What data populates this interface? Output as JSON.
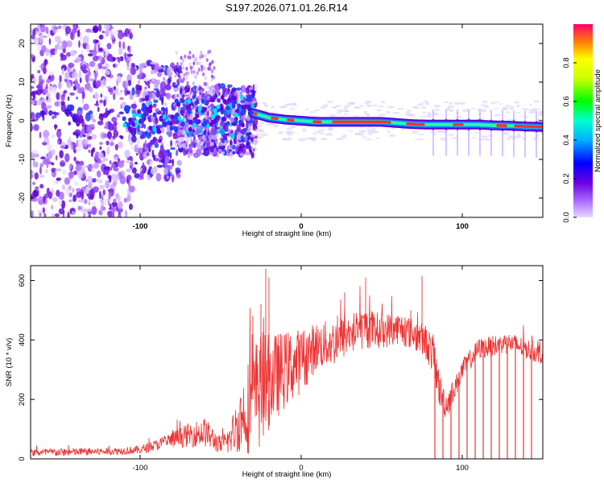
{
  "title": "S197.2026.071.01.26.R14",
  "colors": {
    "snr_line": "#ee3333",
    "axis": "#000000",
    "trace_core": "#ff3322"
  },
  "chart_data": [
    {
      "type": "heatmap",
      "name": "spectrogram",
      "xlabel": "Height of straight line (km)",
      "ylabel": "Frequency (Hz)",
      "xlim": [
        -168,
        150
      ],
      "ylim": [
        -25,
        25
      ],
      "x_ticks": [
        "-100",
        "0",
        "100"
      ],
      "x_tick_values": [
        -100,
        0,
        100
      ],
      "y_ticks": [
        "-20",
        "-10",
        "0",
        "10",
        "20"
      ],
      "y_tick_values": [
        -20,
        -10,
        0,
        10,
        20
      ],
      "colorbar": {
        "label": "Normalized spectral amplitude",
        "range": [
          0,
          1
        ],
        "ticks": [
          "0.0",
          "0.2",
          "0.4",
          "0.6",
          "0.8"
        ],
        "tick_values": [
          0.0,
          0.2,
          0.4,
          0.6,
          0.8
        ]
      },
      "peak_trace": {
        "x": [
          -30,
          -20,
          -10,
          0,
          10,
          20,
          30,
          40,
          50,
          60,
          70,
          80,
          90,
          100,
          110,
          120,
          130,
          140,
          150
        ],
        "freq": [
          2.0,
          0.8,
          0.3,
          0.0,
          -0.3,
          -0.3,
          -0.3,
          -0.3,
          -0.3,
          -0.6,
          -0.9,
          -1.0,
          -1.0,
          -1.0,
          -1.0,
          -1.2,
          -1.3,
          -1.5,
          -1.6
        ]
      },
      "striation_x": [
        82,
        90,
        97,
        104,
        111,
        118,
        125,
        132,
        139,
        146
      ]
    },
    {
      "type": "line",
      "name": "snr",
      "xlabel": "Height of straight line (km)",
      "ylabel": "SNR (10 * v/v)",
      "xlim": [
        -168,
        150
      ],
      "ylim": [
        0,
        650
      ],
      "x_ticks": [
        "-100",
        "0",
        "100"
      ],
      "x_tick_values": [
        -100,
        0,
        100
      ],
      "y_ticks": [
        "0",
        "200",
        "400",
        "600"
      ],
      "y_tick_values": [
        0,
        200,
        400,
        600
      ],
      "envelope": {
        "x": [
          -168,
          -150,
          -120,
          -100,
          -85,
          -70,
          -60,
          -50,
          -45,
          -40,
          -35,
          -30,
          -25,
          -20,
          -10,
          0,
          10,
          20,
          30,
          40,
          50,
          60,
          70,
          78,
          82,
          86,
          90,
          95,
          100,
          110,
          120,
          130,
          140,
          150
        ],
        "mean": [
          20,
          22,
          25,
          30,
          55,
          80,
          90,
          45,
          60,
          110,
          160,
          200,
          230,
          260,
          300,
          330,
          380,
          390,
          420,
          440,
          430,
          440,
          420,
          390,
          350,
          230,
          180,
          230,
          300,
          370,
          380,
          390,
          370,
          350
        ],
        "amp": [
          12,
          14,
          12,
          14,
          22,
          40,
          50,
          30,
          45,
          90,
          140,
          190,
          200,
          160,
          130,
          110,
          80,
          80,
          70,
          70,
          60,
          55,
          55,
          60,
          70,
          60,
          50,
          40,
          35,
          35,
          35,
          35,
          35,
          35
        ]
      },
      "dropouts_x": [
        83,
        88,
        93,
        98,
        103,
        108,
        113,
        118,
        123,
        128,
        133,
        138,
        143
      ]
    }
  ]
}
